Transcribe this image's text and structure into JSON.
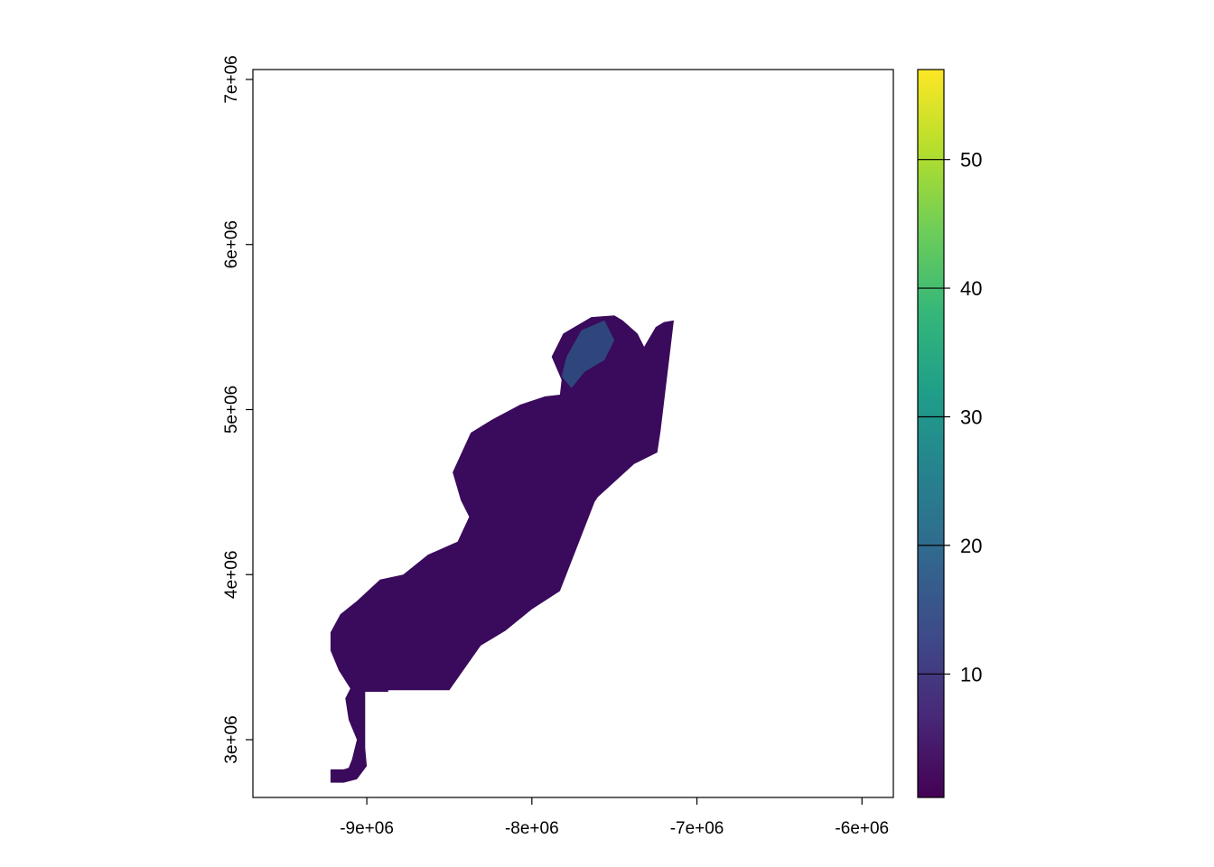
{
  "chart_data": {
    "type": "heatmap",
    "title": "",
    "xlabel": "",
    "ylabel": "",
    "x_ticks": [
      -9000000,
      -8000000,
      -7000000,
      -6000000
    ],
    "x_tick_labels": [
      "-9e+06",
      "-8e+06",
      "-7e+06",
      "-6e+06"
    ],
    "y_ticks": [
      3000000,
      4000000,
      5000000,
      6000000,
      7000000
    ],
    "y_tick_labels": [
      "3e+06",
      "4e+06",
      "5e+06",
      "6e+06",
      "7e+06"
    ],
    "xlim": [
      -9690000,
      -5810000
    ],
    "ylim": [
      2650000,
      7060000
    ],
    "raster_shape_outline": [
      [
        -9220000,
        2740000
      ],
      [
        -9220000,
        2820000
      ],
      [
        -9140000,
        2820000
      ],
      [
        -9110000,
        2830000
      ],
      [
        -9090000,
        2880000
      ],
      [
        -9060000,
        3000000
      ],
      [
        -9110000,
        3120000
      ],
      [
        -9130000,
        3250000
      ],
      [
        -9100000,
        3310000
      ],
      [
        -9170000,
        3420000
      ],
      [
        -9220000,
        3540000
      ],
      [
        -9220000,
        3650000
      ],
      [
        -9160000,
        3760000
      ],
      [
        -9060000,
        3840000
      ],
      [
        -8920000,
        3970000
      ],
      [
        -8780000,
        4000000
      ],
      [
        -8630000,
        4120000
      ],
      [
        -8450000,
        4200000
      ],
      [
        -8380000,
        4350000
      ],
      [
        -8430000,
        4450000
      ],
      [
        -8480000,
        4620000
      ],
      [
        -8370000,
        4860000
      ],
      [
        -8240000,
        4940000
      ],
      [
        -8070000,
        5030000
      ],
      [
        -7920000,
        5080000
      ],
      [
        -7830000,
        5090000
      ],
      [
        -7820000,
        5180000
      ],
      [
        -7880000,
        5320000
      ],
      [
        -7810000,
        5460000
      ],
      [
        -7640000,
        5560000
      ],
      [
        -7500000,
        5570000
      ],
      [
        -7450000,
        5540000
      ],
      [
        -7360000,
        5460000
      ],
      [
        -7320000,
        5380000
      ],
      [
        -7250000,
        5500000
      ],
      [
        -7200000,
        5530000
      ],
      [
        -7140000,
        5540000
      ],
      [
        -7160000,
        5370000
      ],
      [
        -7220000,
        4870000
      ],
      [
        -7240000,
        4740000
      ],
      [
        -7380000,
        4670000
      ],
      [
        -7600000,
        4470000
      ],
      [
        -7620000,
        4440000
      ],
      [
        -7830000,
        3900000
      ],
      [
        -8000000,
        3790000
      ],
      [
        -8160000,
        3660000
      ],
      [
        -8310000,
        3570000
      ],
      [
        -8500000,
        3300000
      ],
      [
        -8870000,
        3300000
      ],
      [
        -8870000,
        3290000
      ],
      [
        -9010000,
        3290000
      ],
      [
        -9010000,
        2950000
      ],
      [
        -9000000,
        2840000
      ],
      [
        -9060000,
        2760000
      ],
      [
        -9140000,
        2740000
      ]
    ],
    "color_scale": {
      "name": "viridis",
      "min": 0.4,
      "max": 57,
      "ticks": [
        10,
        20,
        30,
        40,
        50
      ],
      "tick_labels": [
        "10",
        "20",
        "30",
        "40",
        "50"
      ],
      "stops": [
        "#440154",
        "#482878",
        "#3E4A89",
        "#31688E",
        "#26828E",
        "#1F9E89",
        "#35B779",
        "#6DCD59",
        "#B4DE2C",
        "#FDE725"
      ]
    },
    "raster_dominant_color": "#3a0a5c",
    "raster_accent_color": "#2a5f8a",
    "grid": false,
    "legend": "right"
  }
}
